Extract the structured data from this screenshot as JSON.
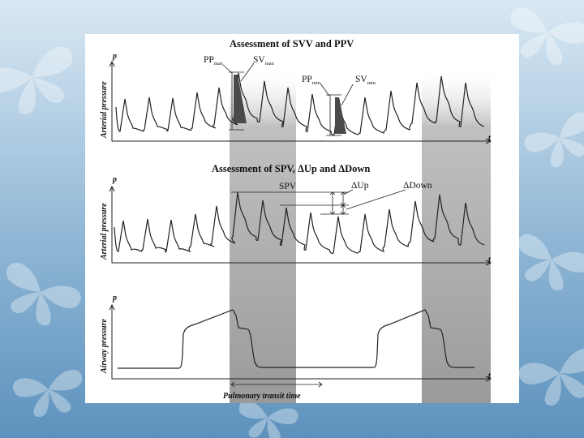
{
  "colors": {
    "background_top": "#d9e8f3",
    "background_bottom": "#5d92bd",
    "panel": "#ffffff",
    "shading": "#9a9a9a",
    "area_fill": "#4a4a4a",
    "trace": "#222222"
  },
  "panels": {
    "top": {
      "title": "Assessment of SVV and PPV",
      "y_label": "Arterial pressure",
      "y_var": "p",
      "x_var": "t",
      "pp_max": {
        "main": "PP",
        "sub": "max"
      },
      "sv_max": {
        "main": "SV",
        "sub": "max"
      },
      "pp_min": {
        "main": "PP",
        "sub": "min"
      },
      "sv_min": {
        "main": "SV",
        "sub": "min"
      }
    },
    "middle": {
      "title": "Assessment of SPV, ΔUp and ΔDown",
      "y_label": "Arterial pressure",
      "y_var": "p",
      "x_var": "t",
      "spv": "SPV",
      "delta_up": "ΔUp",
      "delta_down": "ΔDown"
    },
    "bottom": {
      "y_label": "Airway pressure",
      "y_var": "p",
      "x_var": "t",
      "transit_label": "Pulmonary transit time"
    }
  }
}
